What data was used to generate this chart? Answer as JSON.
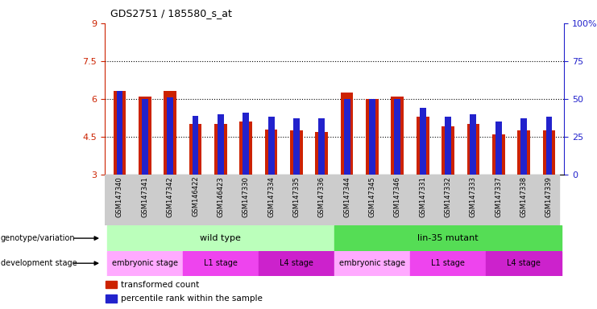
{
  "title": "GDS2751 / 185580_s_at",
  "samples": [
    "GSM147340",
    "GSM147341",
    "GSM147342",
    "GSM146422",
    "GSM146423",
    "GSM147330",
    "GSM147334",
    "GSM147335",
    "GSM147336",
    "GSM147344",
    "GSM147345",
    "GSM147346",
    "GSM147331",
    "GSM147332",
    "GSM147333",
    "GSM147337",
    "GSM147338",
    "GSM147339"
  ],
  "red_values": [
    6.3,
    6.1,
    6.3,
    5.0,
    5.0,
    5.1,
    4.8,
    4.75,
    4.7,
    6.25,
    6.0,
    6.1,
    5.3,
    4.9,
    5.0,
    4.6,
    4.75,
    4.75
  ],
  "blue_percentiles": [
    55,
    50,
    51,
    39,
    40,
    41,
    38,
    37,
    37,
    50,
    50,
    50,
    44,
    38,
    40,
    35,
    37,
    38
  ],
  "ylim_left": [
    3,
    9
  ],
  "ylim_right": [
    0,
    100
  ],
  "yticks_left": [
    3,
    4.5,
    6,
    7.5,
    9
  ],
  "yticks_right": [
    0,
    25,
    50,
    75,
    100
  ],
  "ytick_labels_left": [
    "3",
    "4.5",
    "6",
    "7.5",
    "9"
  ],
  "ytick_labels_right": [
    "0",
    "25",
    "50",
    "75",
    "100%"
  ],
  "hlines": [
    4.5,
    6.0,
    7.5
  ],
  "red_color": "#cc2200",
  "blue_color": "#2222cc",
  "left_tick_color": "#cc2200",
  "right_tick_color": "#2222cc",
  "xtick_bg": "#dddddd",
  "geno_spans": [
    {
      "label": "wild type",
      "start": 0,
      "end": 9,
      "color": "#bbffbb"
    },
    {
      "label": "lin-35 mutant",
      "start": 9,
      "end": 18,
      "color": "#55dd55"
    }
  ],
  "stage_spans": [
    {
      "label": "embryonic stage",
      "start": 0,
      "end": 3,
      "color": "#ffaaff"
    },
    {
      "label": "L1 stage",
      "start": 3,
      "end": 6,
      "color": "#ee44ee"
    },
    {
      "label": "L4 stage",
      "start": 6,
      "end": 9,
      "color": "#cc22cc"
    },
    {
      "label": "embryonic stage",
      "start": 9,
      "end": 12,
      "color": "#ffaaff"
    },
    {
      "label": "L1 stage",
      "start": 12,
      "end": 15,
      "color": "#ee44ee"
    },
    {
      "label": "L4 stage",
      "start": 15,
      "end": 18,
      "color": "#cc22cc"
    }
  ],
  "legend_red": "transformed count",
  "legend_blue": "percentile rank within the sample",
  "genotype_row_label": "genotype/variation",
  "stage_row_label": "development stage"
}
